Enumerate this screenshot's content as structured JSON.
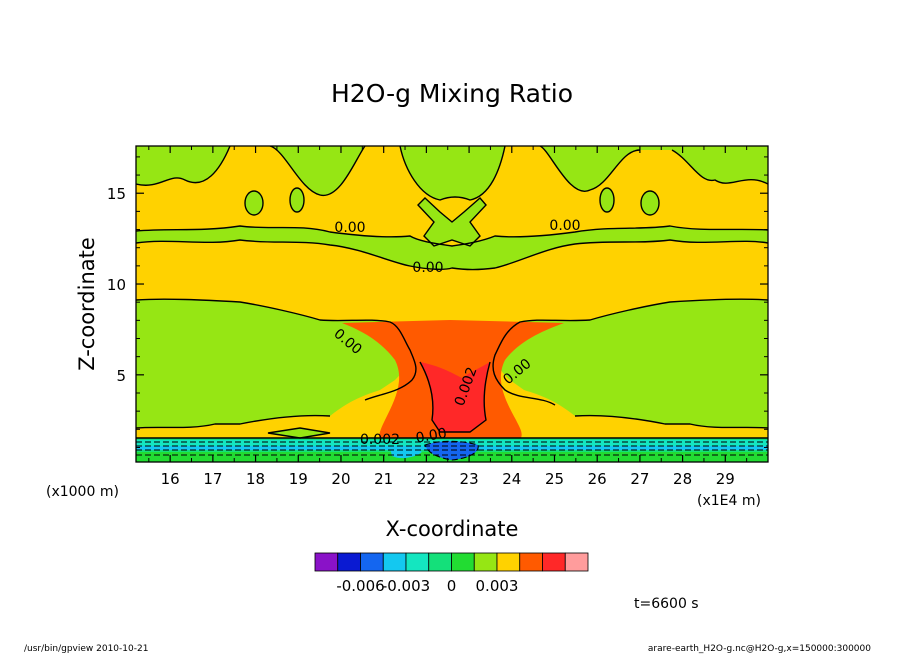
{
  "chart_data": {
    "type": "heatmap",
    "title": "H2O-g Mixing Ratio",
    "xlabel": "X-coordinate",
    "ylabel": "Z-coordinate",
    "x_unit": "(x1E4 m)",
    "y_unit": "(x1000 m)",
    "xlim": [
      15.2,
      30.0
    ],
    "ylim": [
      0.2,
      17.6
    ],
    "x_ticks": [
      "16",
      "17",
      "18",
      "19",
      "20",
      "21",
      "22",
      "23",
      "24",
      "25",
      "26",
      "27",
      "28",
      "29"
    ],
    "y_ticks": [
      "5",
      "10",
      "15"
    ],
    "contour_labels": [
      "0.00",
      "0.00",
      "0.00",
      "0.00",
      "0.00",
      "0.002",
      "0.002",
      "0.00"
    ],
    "colorbar": {
      "colors": [
        "#8a12c8",
        "#0a1ad2",
        "#1466f0",
        "#14c8f0",
        "#14e6c0",
        "#14e07a",
        "#22dc32",
        "#96e614",
        "#ffd200",
        "#ff5a00",
        "#ff2828",
        "#ff9c9c"
      ],
      "tick_labels": [
        "-0.006",
        "-0.003",
        "0",
        "0.003"
      ],
      "tick_values": [
        -0.006,
        -0.003,
        0,
        0.003
      ]
    },
    "time_label": "t=6600 s"
  },
  "footer": {
    "left": "/usr/bin/gpview  2010-10-21",
    "right": "arare-earth_H2O-g.nc@H2O-g,x=150000:300000"
  },
  "colors": {
    "green": "#96e614",
    "yellow": "#ffd200",
    "orange": "#ff5a00",
    "red": "#ff2828",
    "cyan": "#14c8f0",
    "teal": "#14e6c0",
    "lightgreen": "#14e07a",
    "blue": "#1466f0"
  }
}
